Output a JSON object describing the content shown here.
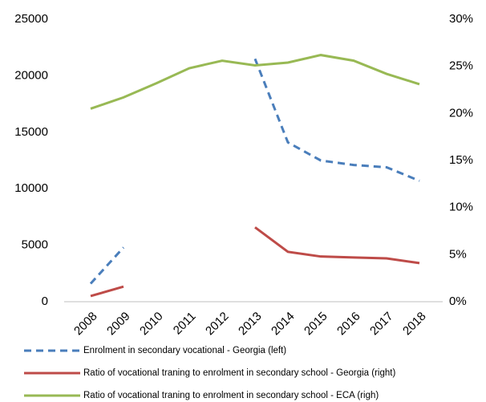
{
  "chart_data": {
    "type": "line",
    "categories": [
      "2008",
      "2009",
      "2010",
      "2011",
      "2012",
      "2013",
      "2014",
      "2015",
      "2016",
      "2017",
      "2018"
    ],
    "ylim": [
      0,
      25000
    ],
    "yticks": [
      0,
      5000,
      10000,
      15000,
      20000,
      25000
    ],
    "y2lim": [
      0,
      30
    ],
    "y2ticks": [
      {
        "value": 0,
        "label": "0%"
      },
      {
        "value": 5,
        "label": "5%"
      },
      {
        "value": 10,
        "label": "10%"
      },
      {
        "value": 15,
        "label": "15%"
      },
      {
        "value": 20,
        "label": "20%"
      },
      {
        "value": 25,
        "label": "25%"
      },
      {
        "value": 30,
        "label": "30%"
      }
    ],
    "grid": false,
    "series": [
      {
        "name": "Enrolment in secondary vocational - Georgia (left)",
        "color": "#4a7ebb",
        "dashed": true,
        "values": [
          1600,
          4800,
          null,
          null,
          null,
          21500,
          14100,
          12500,
          12100,
          11900,
          10700
        ]
      },
      {
        "name": "Ratio of vocational traning to enrolment in secondary school - Georgia (right)",
        "color": "#be4b48",
        "axis": "y2",
        "values": [
          0.6,
          1.6,
          null,
          null,
          null,
          7.9,
          5.3,
          4.8,
          4.7,
          4.6,
          4.1
        ]
      },
      {
        "name": "Ratio of vocational traning to enrolment in secondary school - ECA (righ)",
        "color": "#98b954",
        "axis": "y2",
        "values": [
          20.5,
          21.7,
          23.2,
          24.8,
          25.6,
          25.1,
          25.4,
          26.2,
          25.6,
          24.2,
          23.1
        ]
      }
    ]
  }
}
